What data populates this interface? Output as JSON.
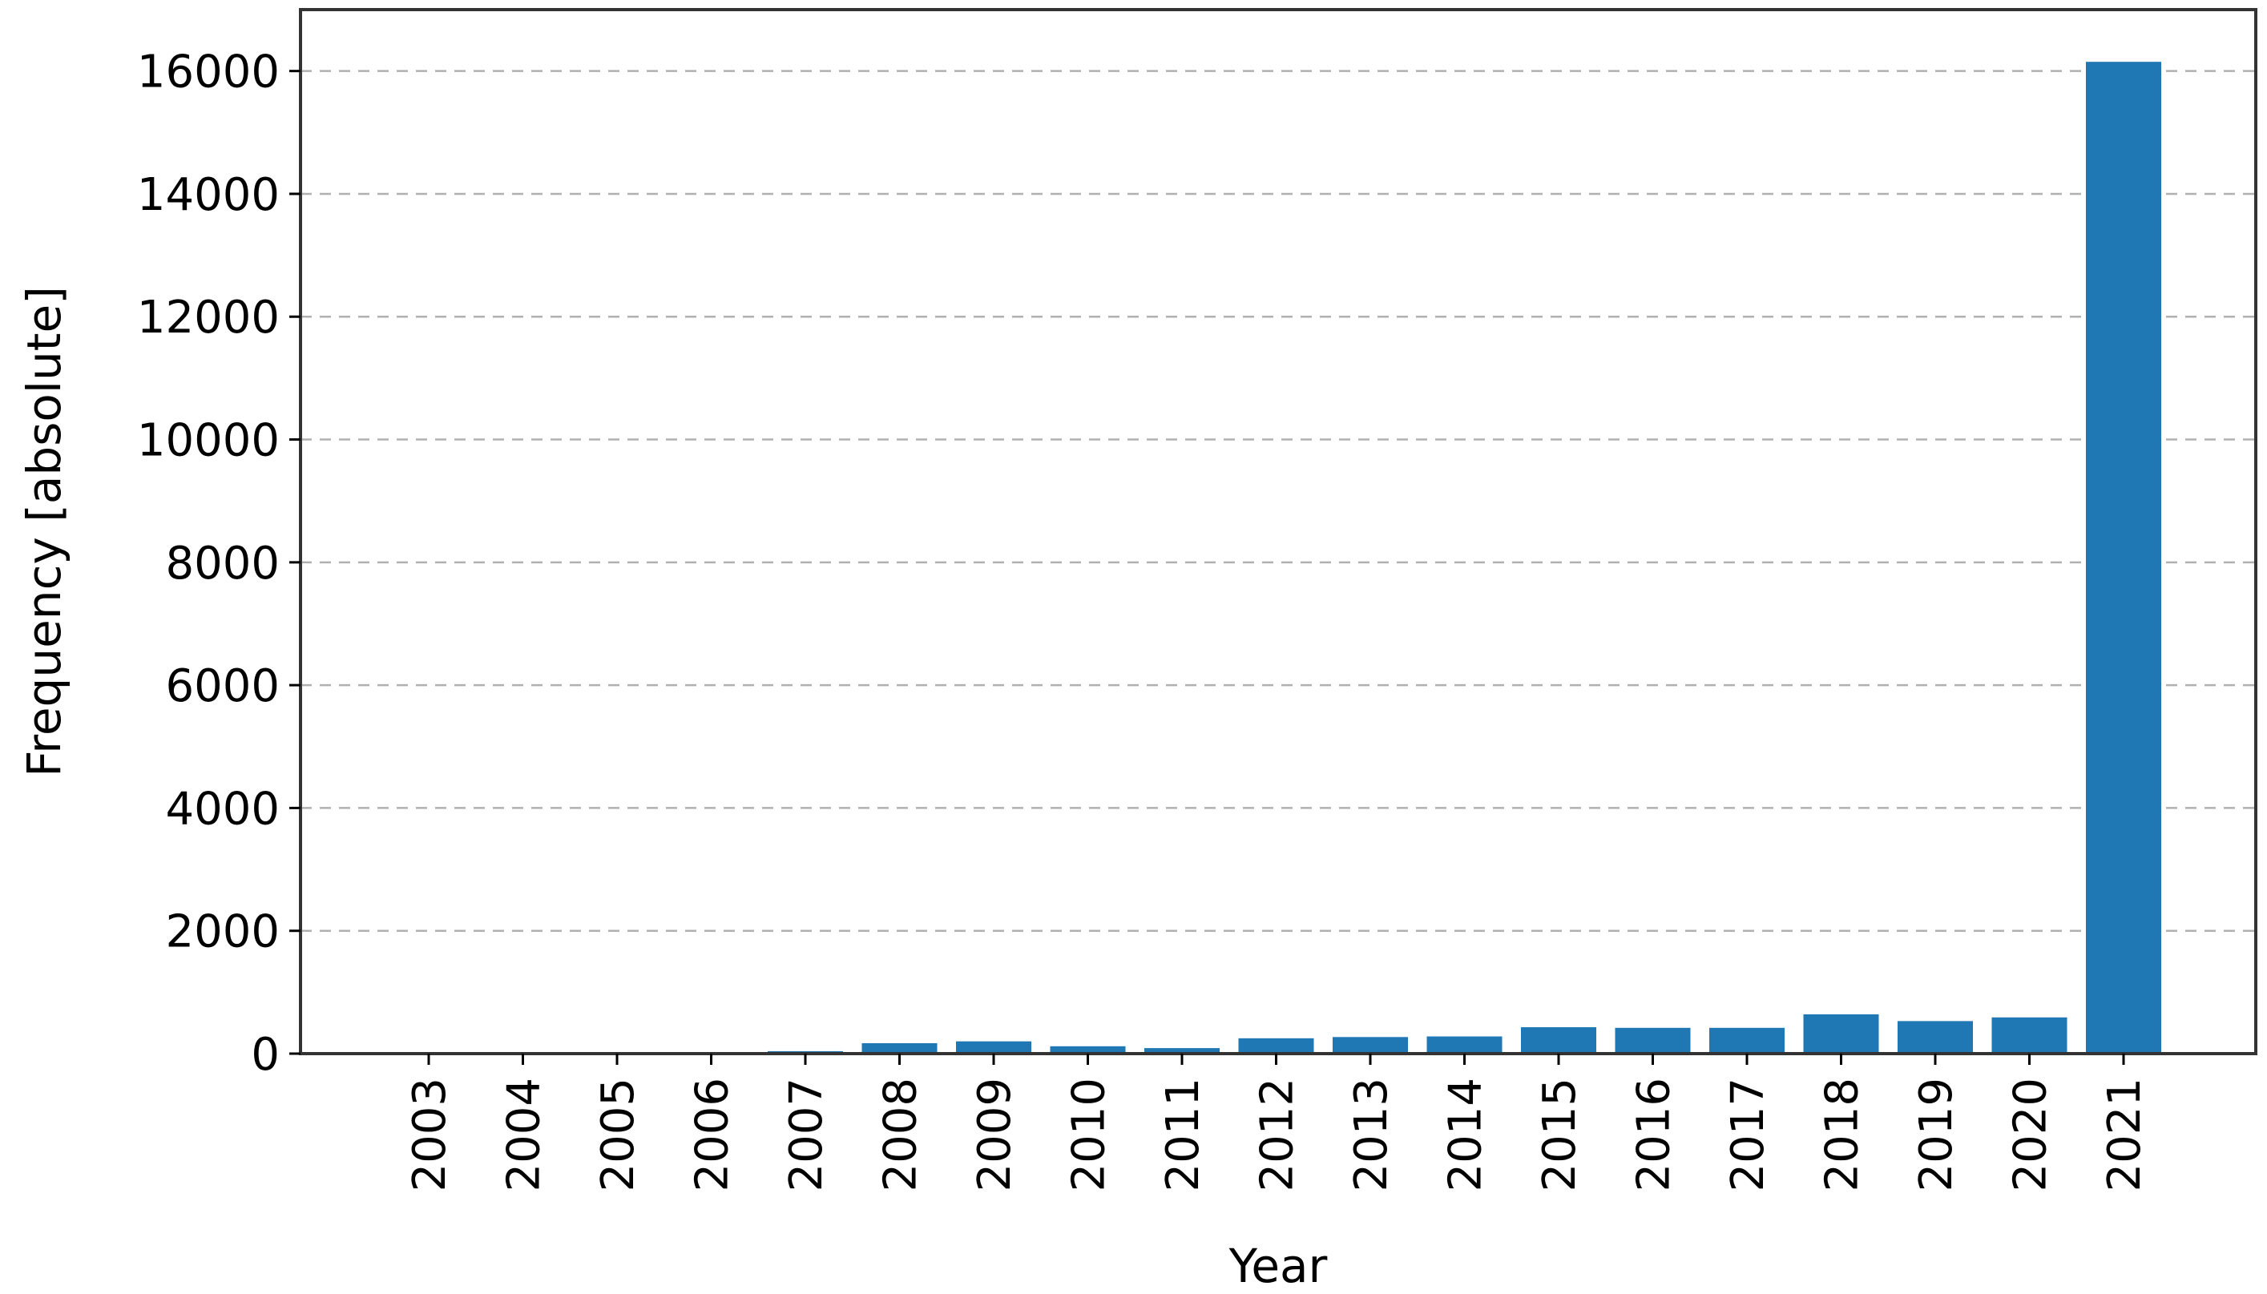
{
  "chart_data": {
    "type": "bar",
    "title": "",
    "xlabel": "Year",
    "ylabel": "Frequency [absolute]",
    "categories": [
      "2003",
      "2004",
      "2005",
      "2006",
      "2007",
      "2008",
      "2009",
      "2010",
      "2011",
      "2012",
      "2013",
      "2014",
      "2015",
      "2016",
      "2017",
      "2018",
      "2019",
      "2020",
      "2021"
    ],
    "values": [
      2,
      5,
      10,
      15,
      40,
      170,
      200,
      120,
      90,
      250,
      270,
      280,
      430,
      420,
      420,
      640,
      530,
      590,
      16150
    ],
    "yticks": [
      0,
      2000,
      4000,
      6000,
      8000,
      10000,
      12000,
      14000,
      16000
    ],
    "ylim": [
      0,
      17000
    ],
    "grid": "y-dashed",
    "legend": "none",
    "colors": {
      "bar": "#1f77b4",
      "grid": "#b0b0b0",
      "spine": "#333333"
    }
  }
}
